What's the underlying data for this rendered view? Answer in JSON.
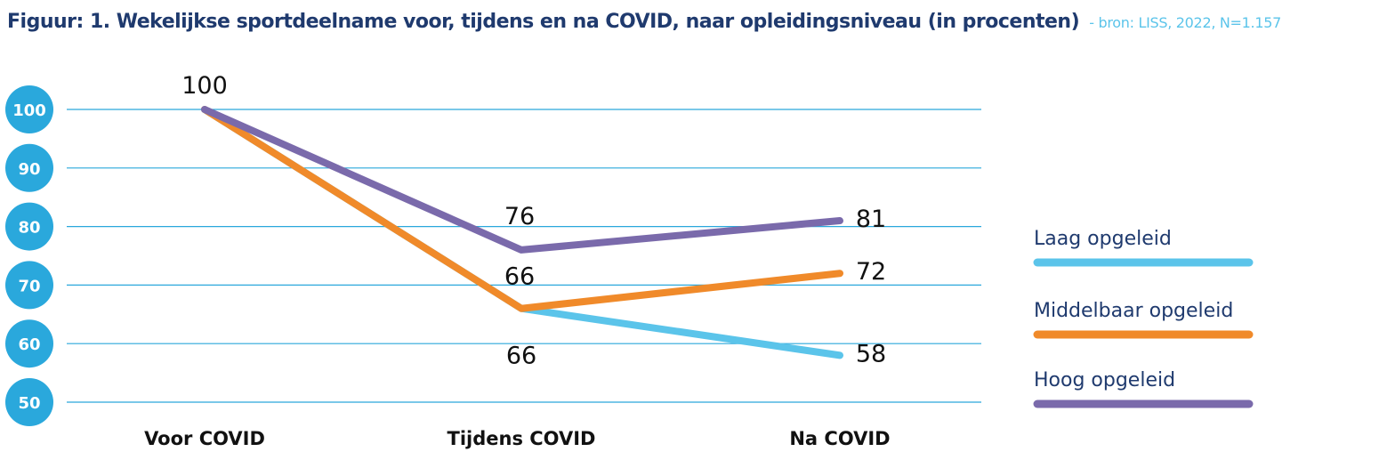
{
  "chart_data": {
    "type": "line",
    "title": "Figuur: 1. Wekelijkse sportdeelname voor, tijdens en na COVID, naar opleidingsniveau (in procenten)",
    "subtitle": "- bron: LISS, 2022, N=1.157",
    "categories": [
      "Voor COVID",
      "Tijdens COVID",
      "Na COVID"
    ],
    "ylim": [
      50,
      100
    ],
    "yticks": [
      "100",
      "90",
      "80",
      "70",
      "60",
      "50"
    ],
    "grid": true,
    "legend": "right",
    "series": [
      {
        "name": "Laag opgeleid",
        "values": [
          100,
          66,
          58
        ],
        "color": "#5bc4ea",
        "labels": [
          "",
          "66",
          "58"
        ]
      },
      {
        "name": "Middelbaar opgeleid",
        "values": [
          100,
          66,
          72
        ],
        "color": "#f08a2a",
        "labels": [
          "",
          "66",
          "72"
        ]
      },
      {
        "name": "Hoog opgeleid",
        "values": [
          100,
          76,
          81
        ],
        "color": "#7a6aab",
        "labels": [
          "100",
          "76",
          "81"
        ]
      }
    ]
  },
  "colors": {
    "axis_badge": "#2aa8dc",
    "grid": "#2aa8dc",
    "title": "#1f3a6e",
    "source": "#5bc4ea"
  }
}
